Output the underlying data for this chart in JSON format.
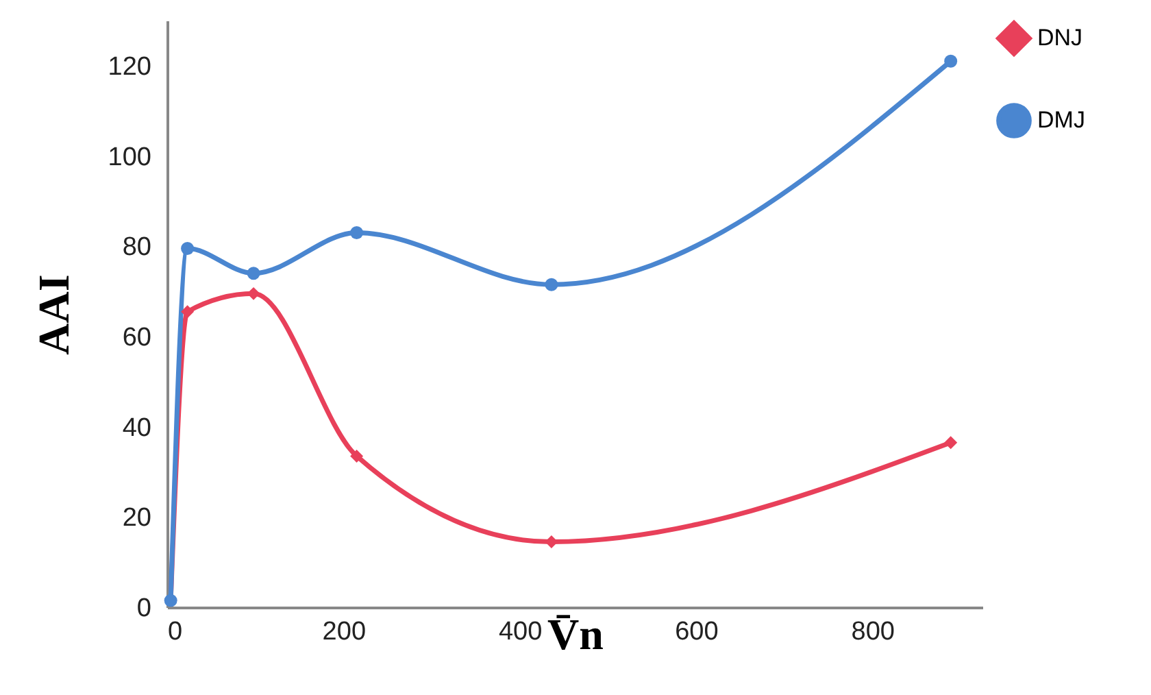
{
  "chart_data": {
    "type": "line",
    "xlabel": "V̄n",
    "ylabel": "AAI",
    "xlim": [
      0,
      925
    ],
    "ylim": [
      0,
      130
    ],
    "xticks": [
      0,
      200,
      400,
      600,
      800
    ],
    "yticks": [
      0,
      20,
      40,
      60,
      80,
      100,
      120
    ],
    "grid": false,
    "legend": "right",
    "line_style": "solid",
    "series": [
      {
        "name": "DNJ",
        "color": "#e8405a",
        "marker": "diamond",
        "x": [
          4,
          23,
          98,
          215,
          436,
          889
        ],
        "values": [
          1.5,
          65.5,
          69.5,
          33.5,
          14.5,
          36.5
        ]
      },
      {
        "name": "DMJ",
        "color": "#4a86d0",
        "marker": "circle",
        "x": [
          4,
          23,
          98,
          215,
          436,
          889
        ],
        "values": [
          1.5,
          79.5,
          74,
          83,
          71.5,
          121
        ]
      }
    ]
  }
}
